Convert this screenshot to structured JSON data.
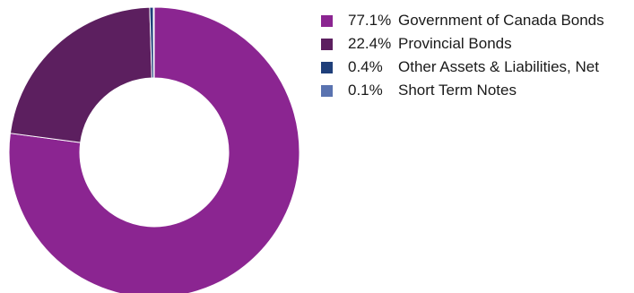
{
  "chart_data": {
    "type": "pie",
    "donut": true,
    "title": "",
    "legend_position": "right",
    "slices": [
      {
        "label": "Government of Canada Bonds",
        "percent_label": "77.1%",
        "value": 77.1,
        "color": "#8b2591"
      },
      {
        "label": "Provincial Bonds",
        "percent_label": "22.4%",
        "value": 22.4,
        "color": "#5c1f5f"
      },
      {
        "label": "Other Assets & Liabilities, Net",
        "percent_label": "0.4%",
        "value": 0.4,
        "color": "#1f3f7a"
      },
      {
        "label": "Short Term Notes",
        "percent_label": "0.1%",
        "value": 0.1,
        "color": "#5a73b0"
      }
    ]
  }
}
